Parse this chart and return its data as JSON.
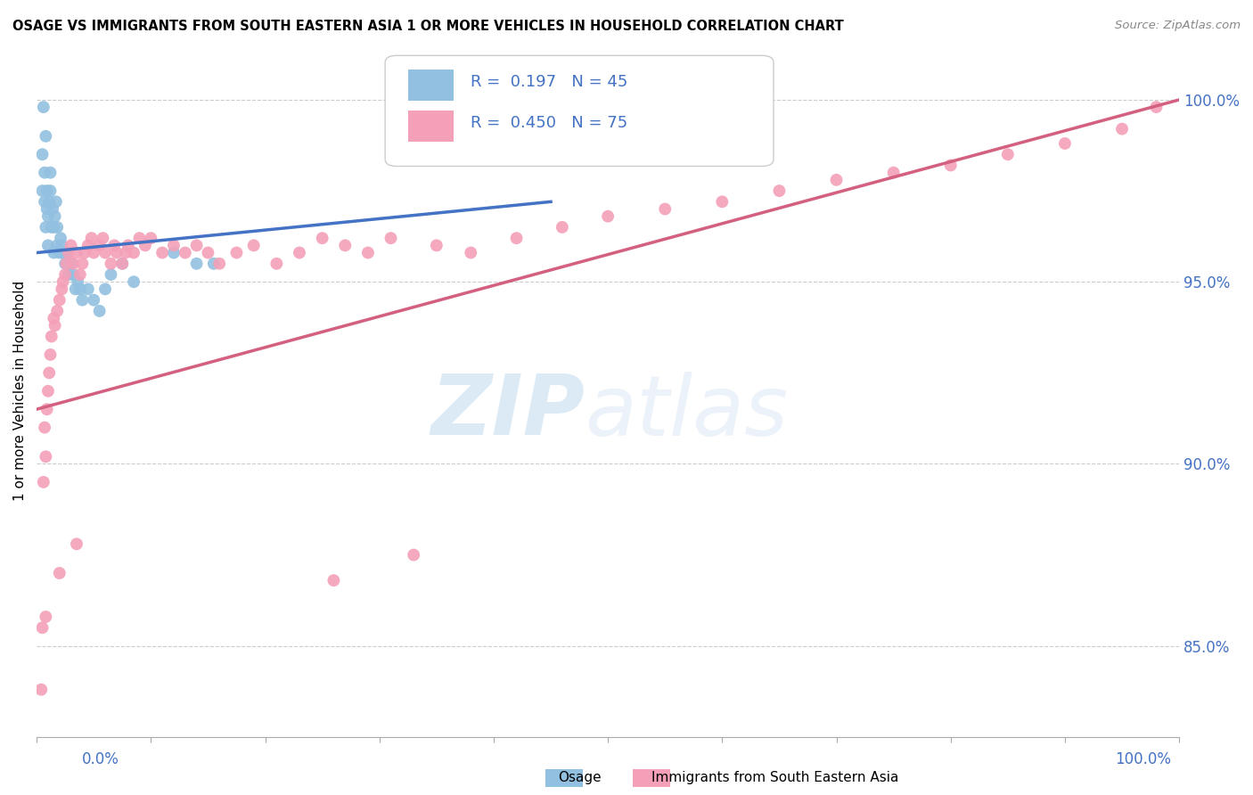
{
  "title": "OSAGE VS IMMIGRANTS FROM SOUTH EASTERN ASIA 1 OR MORE VEHICLES IN HOUSEHOLD CORRELATION CHART",
  "source": "Source: ZipAtlas.com",
  "ylabel": "1 or more Vehicles in Household",
  "watermark_zip": "ZIP",
  "watermark_atlas": "atlas",
  "legend_blue_R": "0.197",
  "legend_blue_N": "45",
  "legend_pink_R": "0.450",
  "legend_pink_N": "75",
  "blue_color": "#92c0e0",
  "pink_color": "#f4a0b8",
  "blue_line_color": "#4472c4",
  "pink_line_color": "#d46080",
  "ytick_labels": [
    "100.0%",
    "95.0%",
    "90.0%",
    "85.0%"
  ],
  "ytick_values": [
    1.0,
    0.95,
    0.9,
    0.85
  ],
  "xlim": [
    0.0,
    1.0
  ],
  "ylim": [
    0.825,
    1.015
  ],
  "blue_scatter_x": [
    0.005,
    0.005,
    0.006,
    0.007,
    0.007,
    0.008,
    0.008,
    0.009,
    0.009,
    0.01,
    0.01,
    0.011,
    0.012,
    0.012,
    0.013,
    0.014,
    0.015,
    0.015,
    0.016,
    0.017,
    0.018,
    0.018,
    0.02,
    0.021,
    0.022,
    0.023,
    0.025,
    0.026,
    0.028,
    0.03,
    0.032,
    0.034,
    0.036,
    0.038,
    0.04,
    0.045,
    0.05,
    0.055,
    0.06,
    0.065,
    0.075,
    0.085,
    0.12,
    0.14,
    0.155
  ],
  "blue_scatter_y": [
    0.975,
    0.985,
    0.998,
    0.972,
    0.98,
    0.99,
    0.965,
    0.97,
    0.975,
    0.96,
    0.968,
    0.972,
    0.975,
    0.98,
    0.965,
    0.97,
    0.958,
    0.965,
    0.968,
    0.972,
    0.96,
    0.965,
    0.958,
    0.962,
    0.96,
    0.958,
    0.955,
    0.958,
    0.952,
    0.955,
    0.952,
    0.948,
    0.95,
    0.948,
    0.945,
    0.948,
    0.945,
    0.942,
    0.948,
    0.952,
    0.955,
    0.95,
    0.958,
    0.955,
    0.955
  ],
  "pink_scatter_x": [
    0.004,
    0.005,
    0.006,
    0.007,
    0.008,
    0.009,
    0.01,
    0.011,
    0.012,
    0.013,
    0.015,
    0.016,
    0.018,
    0.02,
    0.022,
    0.023,
    0.025,
    0.026,
    0.028,
    0.03,
    0.032,
    0.035,
    0.038,
    0.04,
    0.042,
    0.045,
    0.048,
    0.05,
    0.055,
    0.058,
    0.06,
    0.065,
    0.068,
    0.07,
    0.075,
    0.078,
    0.08,
    0.085,
    0.09,
    0.095,
    0.1,
    0.11,
    0.12,
    0.13,
    0.14,
    0.15,
    0.16,
    0.175,
    0.19,
    0.21,
    0.23,
    0.25,
    0.27,
    0.29,
    0.31,
    0.35,
    0.38,
    0.42,
    0.46,
    0.5,
    0.55,
    0.6,
    0.65,
    0.7,
    0.75,
    0.8,
    0.85,
    0.9,
    0.95,
    0.98,
    0.008,
    0.02,
    0.035,
    0.26,
    0.33
  ],
  "pink_scatter_y": [
    0.838,
    0.855,
    0.895,
    0.91,
    0.902,
    0.915,
    0.92,
    0.925,
    0.93,
    0.935,
    0.94,
    0.938,
    0.942,
    0.945,
    0.948,
    0.95,
    0.952,
    0.955,
    0.958,
    0.96,
    0.955,
    0.958,
    0.952,
    0.955,
    0.958,
    0.96,
    0.962,
    0.958,
    0.96,
    0.962,
    0.958,
    0.955,
    0.96,
    0.958,
    0.955,
    0.958,
    0.96,
    0.958,
    0.962,
    0.96,
    0.962,
    0.958,
    0.96,
    0.958,
    0.96,
    0.958,
    0.955,
    0.958,
    0.96,
    0.955,
    0.958,
    0.962,
    0.96,
    0.958,
    0.962,
    0.96,
    0.958,
    0.962,
    0.965,
    0.968,
    0.97,
    0.972,
    0.975,
    0.978,
    0.98,
    0.982,
    0.985,
    0.988,
    0.992,
    0.998,
    0.858,
    0.87,
    0.878,
    0.868,
    0.875
  ],
  "blue_line_x": [
    0.0,
    0.45
  ],
  "blue_line_y_start": 0.958,
  "blue_line_y_end": 0.972,
  "pink_line_x": [
    0.0,
    1.0
  ],
  "pink_line_y_start": 0.915,
  "pink_line_y_end": 1.0
}
